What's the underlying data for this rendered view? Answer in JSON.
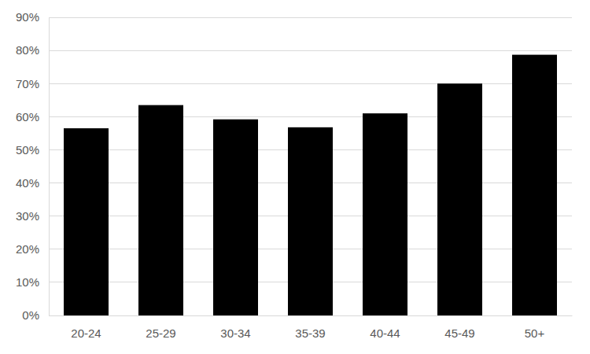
{
  "chart_data": {
    "type": "bar",
    "categories": [
      "20-24",
      "25-29",
      "30-34",
      "35-39",
      "40-44",
      "45-49",
      "50+"
    ],
    "values": [
      56.5,
      63.5,
      59.2,
      56.8,
      61,
      70,
      78.7
    ],
    "color": "#000000",
    "ylim": [
      0,
      90
    ],
    "yticks": [
      {
        "value": 0,
        "label": "0%"
      },
      {
        "value": 10,
        "label": "10%"
      },
      {
        "value": 20,
        "label": "20%"
      },
      {
        "value": 30,
        "label": "30%"
      },
      {
        "value": 40,
        "label": "40%"
      },
      {
        "value": 50,
        "label": "50%"
      },
      {
        "value": 60,
        "label": "60%"
      },
      {
        "value": 70,
        "label": "70%"
      },
      {
        "value": 80,
        "label": "80%"
      },
      {
        "value": 90,
        "label": "90%"
      }
    ],
    "grid": true
  }
}
